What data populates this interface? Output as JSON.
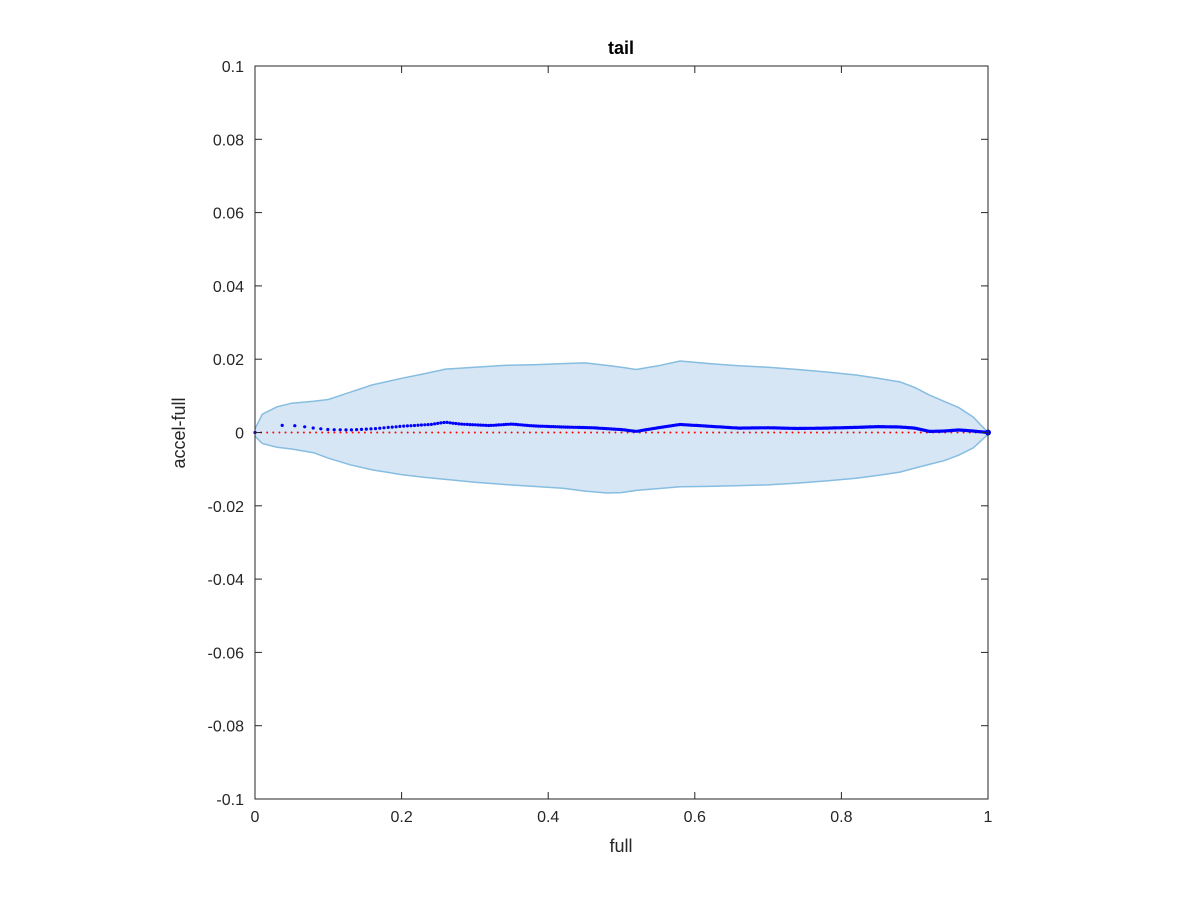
{
  "chart_data": {
    "type": "area",
    "title": "tail",
    "xlabel": "full",
    "ylabel": "accel-full",
    "xlim": [
      0,
      1
    ],
    "ylim": [
      -0.1,
      0.1
    ],
    "xticks": [
      0,
      0.2,
      0.4,
      0.6,
      0.8,
      1
    ],
    "xtick_labels": [
      "0",
      "0.2",
      "0.4",
      "0.6",
      "0.8",
      "1"
    ],
    "yticks": [
      -0.1,
      -0.08,
      -0.06,
      -0.04,
      -0.02,
      0,
      0.02,
      0.04,
      0.06,
      0.08,
      0.1
    ],
    "ytick_labels": [
      "-0.1",
      "-0.08",
      "-0.06",
      "-0.04",
      "-0.02",
      "0",
      "0.02",
      "0.04",
      "0.06",
      "0.08",
      "0.1"
    ],
    "grid": false,
    "colors": {
      "band_fill": "#d6e6f4",
      "band_edge": "#87bde0",
      "mean": "#0000ff",
      "zero": "#ff0000",
      "axes": "#262626"
    },
    "band": {
      "x": [
        0,
        0.01,
        0.03,
        0.05,
        0.08,
        0.1,
        0.13,
        0.16,
        0.2,
        0.23,
        0.26,
        0.3,
        0.34,
        0.38,
        0.42,
        0.45,
        0.48,
        0.5,
        0.52,
        0.55,
        0.58,
        0.62,
        0.66,
        0.7,
        0.74,
        0.78,
        0.82,
        0.85,
        0.88,
        0.9,
        0.92,
        0.94,
        0.96,
        0.98,
        1
      ],
      "upper": [
        0.001,
        0.005,
        0.007,
        0.008,
        0.0085,
        0.009,
        0.011,
        0.013,
        0.0148,
        0.016,
        0.0173,
        0.0178,
        0.0183,
        0.0185,
        0.0188,
        0.019,
        0.0183,
        0.0178,
        0.0172,
        0.0182,
        0.0195,
        0.0188,
        0.0182,
        0.0178,
        0.0172,
        0.0165,
        0.0157,
        0.0148,
        0.0138,
        0.0123,
        0.0102,
        0.0085,
        0.0068,
        0.0042,
        0.0
      ],
      "lower": [
        -0.001,
        -0.003,
        -0.004,
        -0.0045,
        -0.0055,
        -0.007,
        -0.0088,
        -0.0102,
        -0.0115,
        -0.0122,
        -0.0128,
        -0.0136,
        -0.0142,
        -0.0147,
        -0.0152,
        -0.016,
        -0.0165,
        -0.0164,
        -0.0158,
        -0.0153,
        -0.0148,
        -0.0147,
        -0.0145,
        -0.0143,
        -0.0138,
        -0.0132,
        -0.0125,
        -0.0117,
        -0.0108,
        -0.0097,
        -0.0087,
        -0.0077,
        -0.0062,
        -0.0042,
        -0.0005
      ]
    },
    "series": [
      {
        "values_x": [
          0,
          0.02,
          0.04,
          0.06,
          0.08,
          0.1,
          0.13,
          0.16,
          0.2,
          0.24,
          0.26,
          0.28,
          0.32,
          0.35,
          0.38,
          0.42,
          0.46,
          0.5,
          0.52,
          0.55,
          0.58,
          0.62,
          0.66,
          0.7,
          0.74,
          0.78,
          0.82,
          0.85,
          0.88,
          0.9,
          0.92,
          0.94,
          0.96,
          0.98,
          1
        ],
        "values_y": [
          0.0,
          0.0015,
          0.002,
          0.0018,
          0.0012,
          0.0008,
          0.0007,
          0.001,
          0.0017,
          0.0022,
          0.0028,
          0.0023,
          0.0019,
          0.0023,
          0.0018,
          0.0015,
          0.0013,
          0.0008,
          0.0003,
          0.0013,
          0.0022,
          0.0017,
          0.0012,
          0.0013,
          0.0011,
          0.0012,
          0.0014,
          0.0016,
          0.0015,
          0.0012,
          0.0003,
          0.0004,
          0.0007,
          0.0004,
          0.0
        ]
      },
      {
        "values_x": [
          0,
          1
        ],
        "values_y": [
          0,
          0
        ]
      }
    ]
  }
}
